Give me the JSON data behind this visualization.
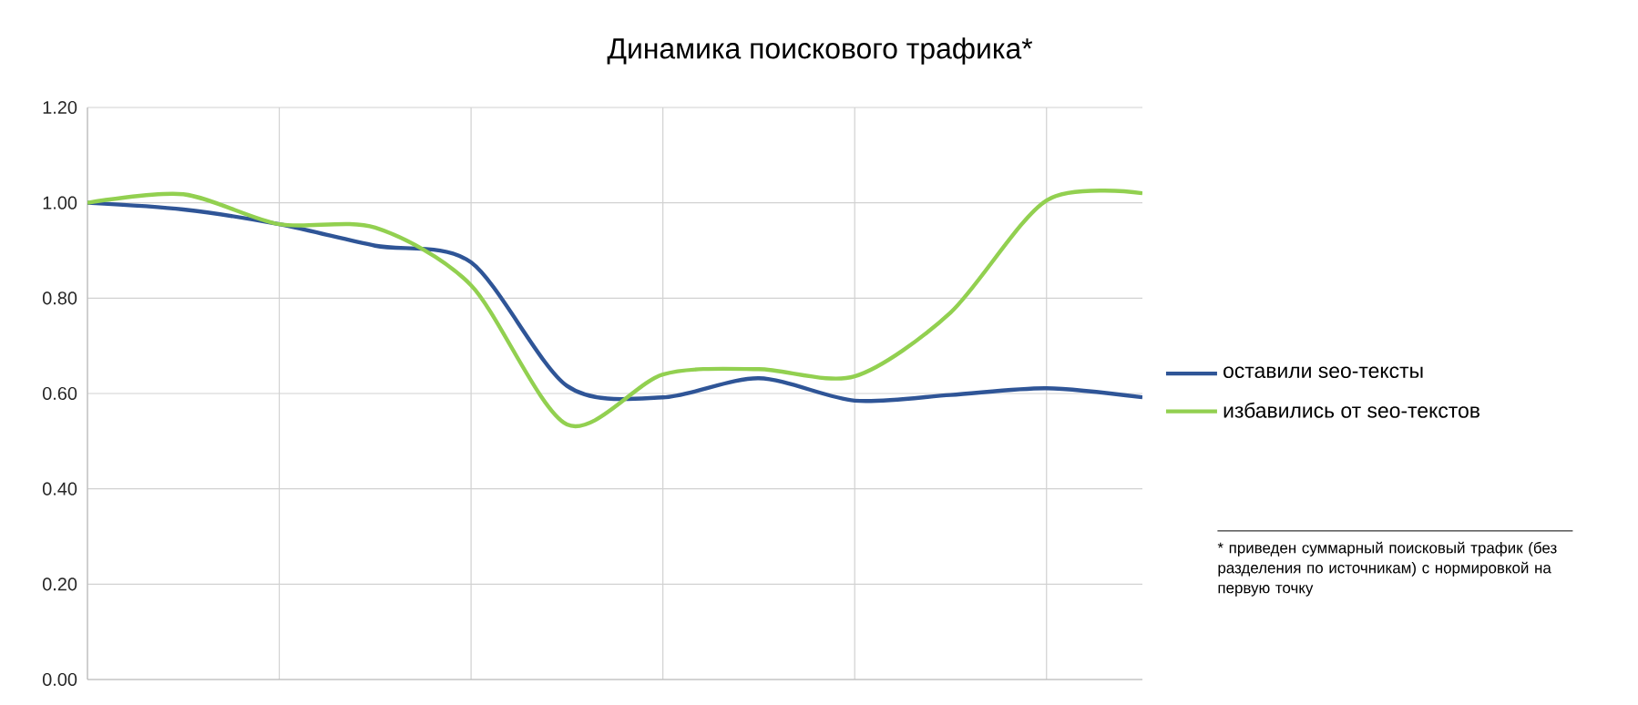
{
  "chart_data": {
    "type": "line",
    "title": "Динамика поискового трафика*",
    "categories": [
      null,
      null,
      null,
      null,
      null,
      null,
      null,
      null,
      null,
      null,
      null,
      null
    ],
    "ylim": [
      0,
      1.2
    ],
    "yticks": [
      {
        "value": 0,
        "label": "0.00"
      },
      {
        "value": 0.2,
        "label": "0.20"
      },
      {
        "value": 0.4,
        "label": "0.40"
      },
      {
        "value": 0.6,
        "label": "0.60"
      },
      {
        "value": 0.8,
        "label": "0.80"
      },
      {
        "value": 1.0,
        "label": "1.00"
      },
      {
        "value": 1.2,
        "label": "1.20"
      }
    ],
    "tick_labels": "y",
    "grid": true,
    "legend": "right",
    "line_style": "solid",
    "series": [
      {
        "name": "оставили seo-тексты",
        "color": "#2f5597",
        "values": [
          1.0,
          0.986,
          0.955,
          0.91,
          0.875,
          0.616,
          0.592,
          0.632,
          0.585,
          0.597,
          0.611,
          0.592
        ]
      },
      {
        "name": "избавились от seo-текстов",
        "color": "#92d050",
        "values": [
          1.0,
          1.018,
          0.955,
          0.948,
          0.827,
          0.535,
          0.64,
          0.651,
          0.636,
          0.77,
          1.005,
          1.02
        ]
      }
    ],
    "annotations": [
      "* приведен суммарный поисковый трафик (без разделения по источникам) с нормировкой на первую точку"
    ]
  }
}
